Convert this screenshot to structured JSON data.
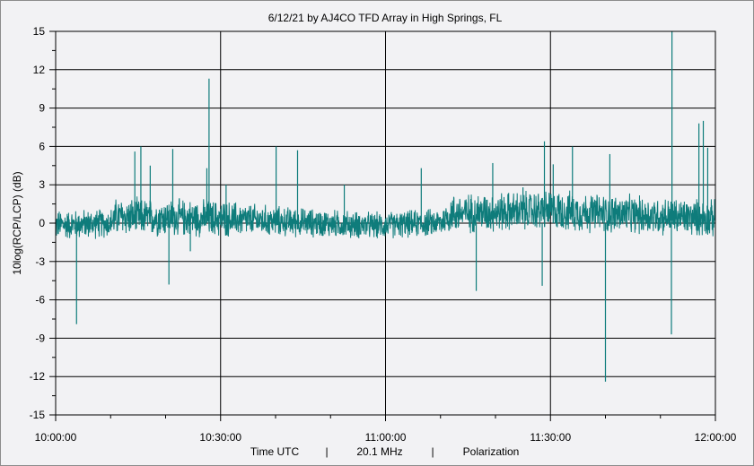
{
  "chart_data": {
    "type": "line",
    "title": "6/12/21  by  AJ4CO TFD Array  in  High Springs, FL",
    "ylabel": "10log(RCP/LCP) (dB)",
    "xlabel_parts": [
      "Time UTC",
      "|",
      "20.1 MHz",
      "|",
      "Polarization"
    ],
    "ylim": [
      -15,
      15
    ],
    "yticks": [
      15,
      12,
      9,
      6,
      3,
      0,
      -3,
      -6,
      -9,
      -12,
      -15
    ],
    "xlim_minutes": [
      0,
      120
    ],
    "xtick_minutes": [
      0,
      30,
      60,
      90,
      120
    ],
    "xtick_labels": [
      "10:00:00",
      "10:30:00",
      "11:00:00",
      "11:30:00",
      "12:00:00"
    ],
    "grid": true,
    "line_color": "#0e7c7b",
    "series": [
      {
        "noise_profile": [
          {
            "x": 0,
            "low": -1.5,
            "high": 1.2
          },
          {
            "x": 10,
            "low": -1.3,
            "high": 1.3
          },
          {
            "x": 11,
            "low": -1.2,
            "high": 2.2
          },
          {
            "x": 30,
            "low": -1.3,
            "high": 2.0
          },
          {
            "x": 40,
            "low": -1.2,
            "high": 1.5
          },
          {
            "x": 58,
            "low": -1.4,
            "high": 1.0
          },
          {
            "x": 70,
            "low": -1.2,
            "high": 1.3
          },
          {
            "x": 72,
            "low": -1.0,
            "high": 2.5
          },
          {
            "x": 90,
            "low": -0.8,
            "high": 2.8
          },
          {
            "x": 100,
            "low": -1.0,
            "high": 2.5
          },
          {
            "x": 120,
            "low": -1.3,
            "high": 2.0
          }
        ],
        "spikes": [
          {
            "x": 3.8,
            "y": -7.9
          },
          {
            "x": 14.4,
            "y": 5.6
          },
          {
            "x": 15.5,
            "y": 6.0
          },
          {
            "x": 17.2,
            "y": 4.5
          },
          {
            "x": 20.6,
            "y": -4.8
          },
          {
            "x": 21.3,
            "y": 5.8
          },
          {
            "x": 24.5,
            "y": -2.2
          },
          {
            "x": 27.5,
            "y": 4.3
          },
          {
            "x": 27.9,
            "y": 11.3
          },
          {
            "x": 31.0,
            "y": 3.0
          },
          {
            "x": 40.1,
            "y": 6.0
          },
          {
            "x": 44.0,
            "y": 5.7
          },
          {
            "x": 52.5,
            "y": 3.0
          },
          {
            "x": 66.5,
            "y": 4.3
          },
          {
            "x": 76.5,
            "y": -5.3
          },
          {
            "x": 79.5,
            "y": 4.7
          },
          {
            "x": 85.0,
            "y": 2.8
          },
          {
            "x": 88.5,
            "y": -4.9
          },
          {
            "x": 88.9,
            "y": 6.4
          },
          {
            "x": 90.5,
            "y": 4.6
          },
          {
            "x": 94.0,
            "y": 6.0
          },
          {
            "x": 100.0,
            "y": -12.4
          },
          {
            "x": 100.8,
            "y": 5.4
          },
          {
            "x": 112.0,
            "y": -8.7
          },
          {
            "x": 112.1,
            "y": 15.0
          },
          {
            "x": 117.0,
            "y": 7.8
          },
          {
            "x": 117.8,
            "y": 8.0
          },
          {
            "x": 118.6,
            "y": 5.9
          }
        ]
      }
    ]
  }
}
